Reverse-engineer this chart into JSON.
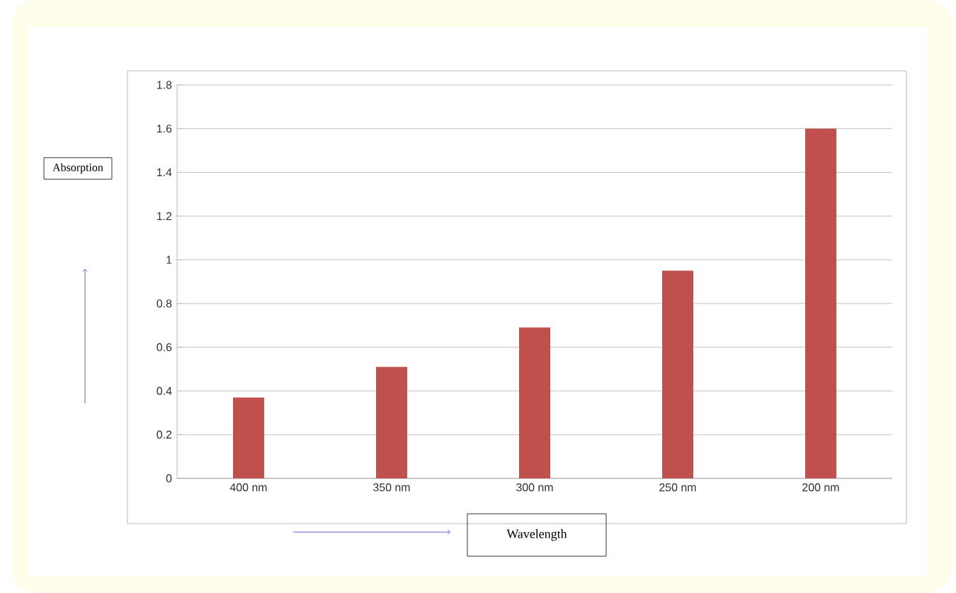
{
  "chart_data": {
    "type": "bar",
    "xlabel": "Wavelength",
    "ylabel": "Absorption",
    "categories": [
      "400 nm",
      "350 nm",
      "300 nm",
      "250 nm",
      "200 nm"
    ],
    "values": [
      0.37,
      0.51,
      0.69,
      0.95,
      1.6
    ],
    "color": "#c0504d",
    "ylim": [
      0,
      1.8
    ],
    "yticks": [
      0,
      0.2,
      0.4,
      0.6,
      0.8,
      1,
      1.2,
      1.4,
      1.6,
      1.8
    ],
    "grid": "y"
  }
}
